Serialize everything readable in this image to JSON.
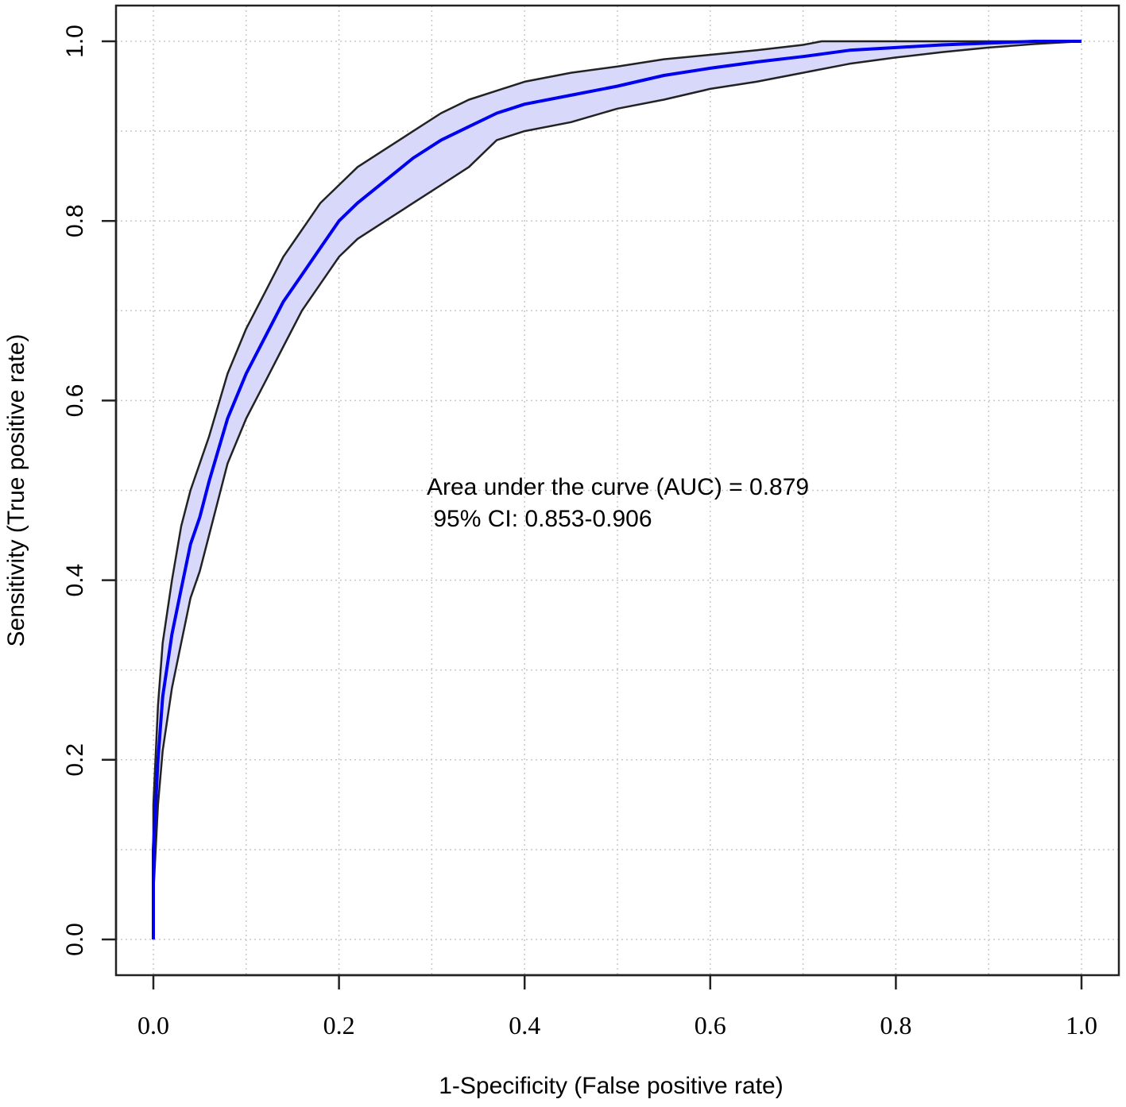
{
  "chart_data": {
    "type": "line",
    "title": "",
    "xlabel": "1-Specificity (False positive rate)",
    "ylabel": "Sensitivity (True positive rate)",
    "xlim": [
      0,
      1
    ],
    "ylim": [
      0,
      1
    ],
    "x_ticks": [
      "0.0",
      "0.2",
      "0.4",
      "0.6",
      "0.8",
      "1.0"
    ],
    "y_ticks": [
      "0.0",
      "0.2",
      "0.4",
      "0.6",
      "0.8",
      "1.0"
    ],
    "grid": true,
    "annotations": [
      "Area under the curve (AUC) = 0.879",
      " 95% CI: 0.853-0.906"
    ],
    "colors": {
      "curve": "#0000ee",
      "band_fill": "#d8d8fa",
      "band_edge": "#222222",
      "grid": "#c8c8c8"
    },
    "series": [
      {
        "role": "roc",
        "x": [
          0,
          0,
          0.005,
          0.01,
          0.02,
          0.03,
          0.04,
          0.05,
          0.06,
          0.08,
          0.1,
          0.12,
          0.14,
          0.16,
          0.18,
          0.2,
          0.22,
          0.25,
          0.28,
          0.31,
          0.34,
          0.37,
          0.4,
          0.45,
          0.5,
          0.55,
          0.6,
          0.65,
          0.7,
          0.75,
          0.8,
          0.85,
          0.9,
          0.95,
          1
        ],
        "y": [
          0,
          0.1,
          0.2,
          0.27,
          0.34,
          0.39,
          0.44,
          0.47,
          0.51,
          0.58,
          0.63,
          0.67,
          0.71,
          0.74,
          0.77,
          0.8,
          0.82,
          0.845,
          0.87,
          0.89,
          0.905,
          0.92,
          0.93,
          0.94,
          0.95,
          0.962,
          0.97,
          0.977,
          0.983,
          0.99,
          0.993,
          0.996,
          0.998,
          1,
          1
        ]
      },
      {
        "role": "ci-upper",
        "x": [
          0,
          0,
          0.005,
          0.01,
          0.02,
          0.03,
          0.04,
          0.05,
          0.06,
          0.08,
          0.1,
          0.12,
          0.14,
          0.16,
          0.18,
          0.2,
          0.22,
          0.25,
          0.28,
          0.31,
          0.34,
          0.37,
          0.4,
          0.45,
          0.5,
          0.55,
          0.6,
          0.65,
          0.7,
          0.72,
          0.75,
          0.8,
          0.85,
          0.9,
          0.95,
          1
        ],
        "y": [
          0,
          0.15,
          0.26,
          0.33,
          0.4,
          0.46,
          0.5,
          0.53,
          0.56,
          0.63,
          0.68,
          0.72,
          0.76,
          0.79,
          0.82,
          0.84,
          0.86,
          0.88,
          0.9,
          0.92,
          0.935,
          0.945,
          0.955,
          0.965,
          0.972,
          0.98,
          0.985,
          0.99,
          0.996,
          1,
          1,
          1,
          1,
          1,
          1,
          1
        ]
      },
      {
        "role": "ci-lower",
        "x": [
          0,
          0,
          0.005,
          0.01,
          0.02,
          0.03,
          0.04,
          0.05,
          0.06,
          0.08,
          0.1,
          0.12,
          0.14,
          0.16,
          0.18,
          0.2,
          0.22,
          0.25,
          0.28,
          0.31,
          0.34,
          0.37,
          0.4,
          0.45,
          0.5,
          0.55,
          0.6,
          0.65,
          0.7,
          0.75,
          0.8,
          0.85,
          0.9,
          0.95,
          1
        ],
        "y": [
          0,
          0.05,
          0.15,
          0.21,
          0.28,
          0.33,
          0.38,
          0.41,
          0.45,
          0.53,
          0.58,
          0.62,
          0.66,
          0.7,
          0.73,
          0.76,
          0.78,
          0.8,
          0.82,
          0.84,
          0.86,
          0.89,
          0.9,
          0.91,
          0.925,
          0.935,
          0.947,
          0.955,
          0.965,
          0.975,
          0.982,
          0.988,
          0.993,
          0.997,
          1
        ]
      }
    ]
  }
}
